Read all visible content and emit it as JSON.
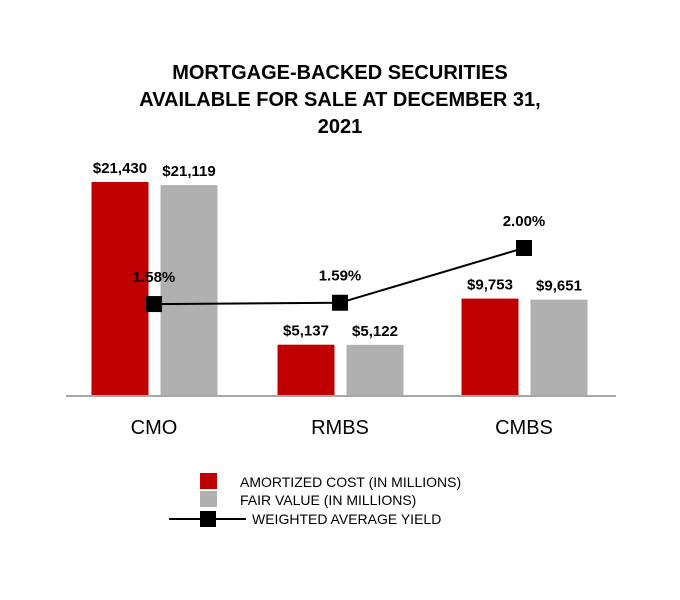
{
  "chart_data": {
    "type": "bar",
    "title_lines": [
      "MORTGAGE-BACKED SECURITIES",
      "AVAILABLE FOR SALE AT DECEMBER 31,",
      "2021"
    ],
    "categories": [
      "CMO",
      "RMBS",
      "CMBS"
    ],
    "series": [
      {
        "name": "AMORTIZED COST (IN MILLIONS)",
        "kind": "bar",
        "color": "#c00000",
        "values": [
          21430,
          5137,
          9753
        ],
        "labels": [
          "$21,430",
          "$5,137",
          "$9,753"
        ]
      },
      {
        "name": "FAIR VALUE (IN MILLIONS)",
        "kind": "bar",
        "color": "#b0b0b0",
        "values": [
          21119,
          5122,
          9651
        ],
        "labels": [
          "$21,119",
          "$5,122",
          "$9,651"
        ]
      },
      {
        "name": "WEIGHTED AVERAGE YIELD",
        "kind": "line",
        "color": "#000000",
        "values": [
          1.58,
          1.59,
          2.0
        ],
        "labels": [
          "1.58%",
          "1.59%",
          "2.00%"
        ]
      }
    ],
    "bar_axis_range": [
      0,
      21430
    ],
    "yield_axis_range": [
      0,
      2.0
    ],
    "legend_position": "bottom-center",
    "grid": false
  }
}
